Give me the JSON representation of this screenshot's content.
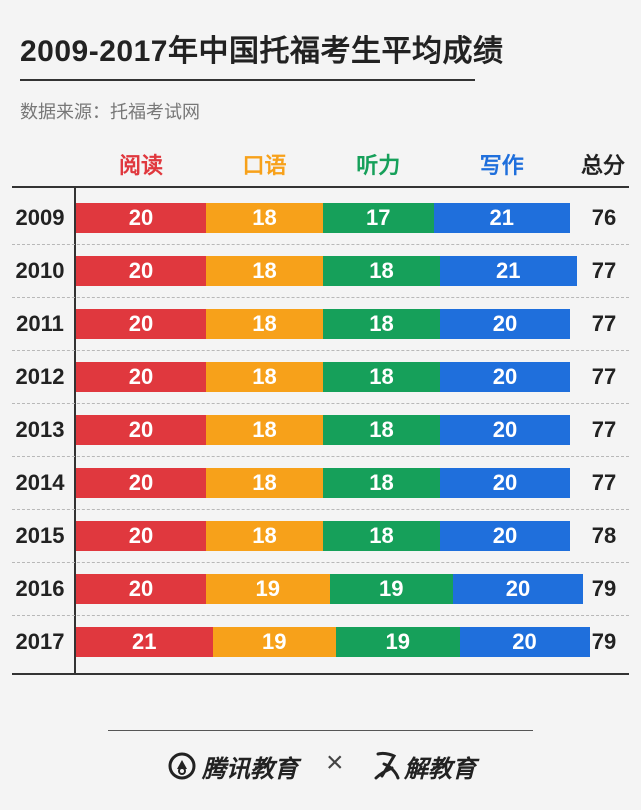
{
  "title": "2009-2017年中国托福考生平均成绩",
  "source": "数据来源：托福考试网",
  "chart_data": {
    "type": "bar",
    "orientation": "horizontal",
    "stacked": true,
    "categories": [
      "2009",
      "2010",
      "2011",
      "2012",
      "2013",
      "2014",
      "2015",
      "2016",
      "2017"
    ],
    "series": [
      {
        "name": "阅读",
        "color": "#e0383e",
        "values": [
          20,
          20,
          20,
          20,
          20,
          20,
          20,
          20,
          21
        ]
      },
      {
        "name": "口语",
        "color": "#f7a11a",
        "values": [
          18,
          18,
          18,
          18,
          18,
          18,
          18,
          19,
          19
        ]
      },
      {
        "name": "听力",
        "color": "#16a05a",
        "values": [
          17,
          18,
          18,
          18,
          18,
          18,
          18,
          19,
          19
        ]
      },
      {
        "name": "写作",
        "color": "#1f6fdc",
        "values": [
          21,
          21,
          20,
          20,
          20,
          20,
          20,
          20,
          20
        ]
      }
    ],
    "totals_label": "总分",
    "totals": [
      76,
      77,
      77,
      77,
      77,
      77,
      78,
      79,
      79
    ],
    "legend_position": "top"
  },
  "footer": {
    "brand_left": "腾讯教育",
    "separator": "×",
    "brand_right": "解教育"
  }
}
